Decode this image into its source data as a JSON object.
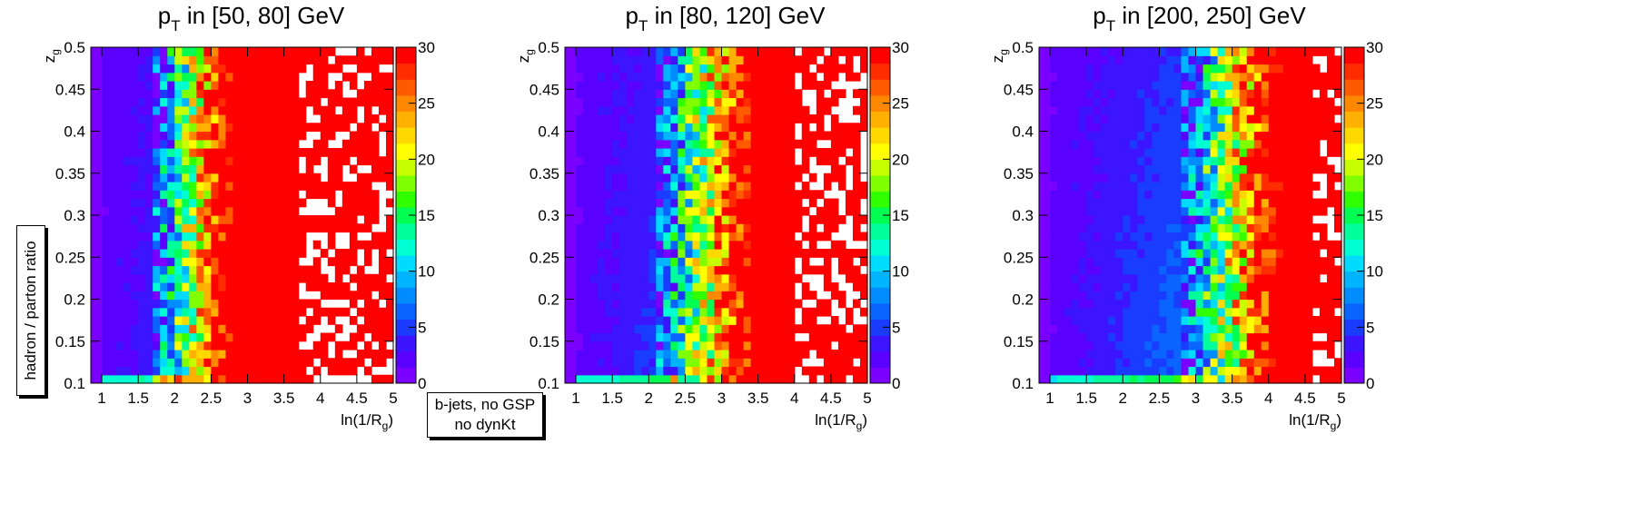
{
  "chart_data": [
    {
      "type": "heatmap",
      "title": "p_T in [50, 80] GeV",
      "title_main": "p",
      "title_sub": "T",
      "title_rest": " in [50, 80] GeV",
      "xlabel_main": "ln(1/R",
      "xlabel_sub": "g",
      "xlabel_end": ")",
      "ylabel_main": "z",
      "ylabel_sub": "g",
      "xlim": [
        0.85,
        5.0
      ],
      "ylim": [
        0.1,
        0.5
      ],
      "zlim": [
        0,
        30
      ],
      "x_ticks": [
        "1",
        "1.5",
        "2",
        "2.5",
        "3",
        "3.5",
        "4",
        "4.5",
        "5"
      ],
      "y_ticks": [
        "0.1",
        "0.15",
        "0.2",
        "0.25",
        "0.3",
        "0.35",
        "0.4",
        "0.45",
        "0.5"
      ],
      "z_ticks": [
        "0",
        "5",
        "10",
        "15",
        "20",
        "25",
        "30"
      ],
      "nbins_x": 40,
      "nbins_y": 40,
      "empty_region_from_x": 1.0,
      "ridge_start_x": 1.7,
      "ridge_saturation_x": 2.6,
      "white_gaps_from_x": 3.7
    },
    {
      "type": "heatmap",
      "title": "p_T in [80, 120] GeV",
      "title_main": "p",
      "title_sub": "T",
      "title_rest": " in [80, 120] GeV",
      "xlabel_main": "ln(1/R",
      "xlabel_sub": "g",
      "xlabel_end": ")",
      "ylabel_main": "z",
      "ylabel_sub": "g",
      "xlim": [
        0.85,
        5.0
      ],
      "ylim": [
        0.1,
        0.5
      ],
      "zlim": [
        0,
        30
      ],
      "x_ticks": [
        "1",
        "1.5",
        "2",
        "2.5",
        "3",
        "3.5",
        "4",
        "4.5",
        "5"
      ],
      "y_ticks": [
        "0.1",
        "0.15",
        "0.2",
        "0.25",
        "0.3",
        "0.35",
        "0.4",
        "0.45",
        "0.5"
      ],
      "z_ticks": [
        "0",
        "5",
        "10",
        "15",
        "20",
        "25",
        "30"
      ],
      "nbins_x": 40,
      "nbins_y": 40,
      "empty_region_from_x": 1.0,
      "ridge_start_x": 2.1,
      "ridge_saturation_x": 3.2,
      "white_gaps_from_x": 4.0
    },
    {
      "type": "heatmap",
      "title": "p_T in [200, 250] GeV",
      "title_main": "p",
      "title_sub": "T",
      "title_rest": " in [200, 250] GeV",
      "xlabel_main": "ln(1/R",
      "xlabel_sub": "g",
      "xlabel_end": ")",
      "ylabel_main": "z",
      "ylabel_sub": "g",
      "xlim": [
        0.85,
        5.0
      ],
      "ylim": [
        0.1,
        0.5
      ],
      "zlim": [
        0,
        30
      ],
      "x_ticks": [
        "1",
        "1.5",
        "2",
        "2.5",
        "3",
        "3.5",
        "4",
        "4.5",
        "5"
      ],
      "y_ticks": [
        "0.1",
        "0.15",
        "0.2",
        "0.25",
        "0.3",
        "0.35",
        "0.4",
        "0.45",
        "0.5"
      ],
      "z_ticks": [
        "0",
        "5",
        "10",
        "15",
        "20",
        "25",
        "30"
      ],
      "nbins_x": 40,
      "nbins_y": 40,
      "empty_region_from_x": 1.0,
      "ridge_start_x": 2.8,
      "ridge_saturation_x": 3.9,
      "white_gaps_from_x": 4.6
    }
  ],
  "shared_ylabel": "hadron / parton ratio",
  "legend": {
    "line1": "b-jets, no GSP",
    "line2": "no dynKt"
  },
  "palette": [
    "#7a00ff",
    "#5a00ff",
    "#3c14ff",
    "#1a3cff",
    "#0a64ff",
    "#008cff",
    "#00b4ff",
    "#00dcff",
    "#00ffd2",
    "#00ff9a",
    "#00ff50",
    "#30ff00",
    "#80ff00",
    "#c8ff00",
    "#ffff00",
    "#ffd800",
    "#ffb000",
    "#ff8800",
    "#ff5a00",
    "#ff2c00",
    "#ff0000"
  ]
}
